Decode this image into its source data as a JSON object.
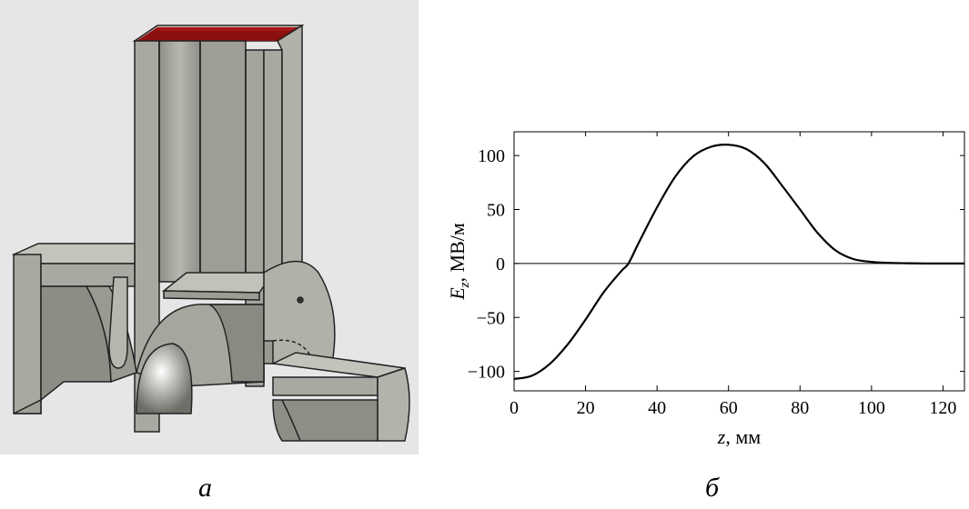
{
  "captions": {
    "a": "а",
    "b": "б"
  },
  "model": {
    "colors": {
      "background": "#e6e6e6",
      "metal": "#a9a9a2",
      "metal_dark": "#7e7e78",
      "port": "#8c1010"
    },
    "icon": "cavity-3d-cutaway"
  },
  "chart_data": {
    "type": "line",
    "xlabel": "z, мм",
    "ylabel": "E_z, МВ/м",
    "xlim": [
      0,
      126
    ],
    "ylim": [
      -118,
      122
    ],
    "xticks": [
      0,
      20,
      40,
      60,
      80,
      100,
      120
    ],
    "yticks": [
      -100,
      -50,
      0,
      50,
      100
    ],
    "ytick_labels": [
      "−100",
      "−50",
      "0",
      "50",
      "100"
    ],
    "zero_line": true,
    "grid": false,
    "series": [
      {
        "color": "#000000",
        "x": [
          0,
          5,
          10,
          15,
          20,
          25,
          30,
          32,
          35,
          40,
          45,
          50,
          55,
          60,
          65,
          70,
          75,
          80,
          85,
          90,
          95,
          100,
          105,
          110,
          115,
          120,
          126
        ],
        "y": [
          -107,
          -104,
          -93,
          -75,
          -52,
          -27,
          -7,
          0,
          20,
          52,
          80,
          99,
          108,
          110,
          106,
          93,
          72,
          50,
          28,
          12,
          4,
          1.5,
          0.5,
          0.2,
          0,
          0,
          0
        ]
      }
    ]
  }
}
